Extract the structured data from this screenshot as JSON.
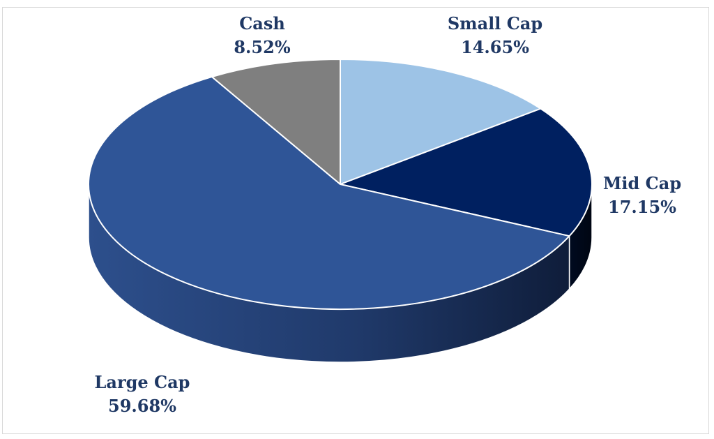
{
  "chart_data": {
    "type": "pie",
    "title": "",
    "categories": [
      "Small Cap",
      "Mid Cap",
      "Large Cap",
      "Cash"
    ],
    "values": [
      14.65,
      17.15,
      59.68,
      8.52
    ],
    "value_labels": [
      "14.65%",
      "17.15%",
      "59.68%",
      "8.52%"
    ],
    "colors": [
      "#9dc3e6",
      "#002060",
      "#2f5597",
      "#7f7f7f"
    ],
    "style": "3d-pie",
    "start": "12 o'clock, clockwise",
    "legend": "none",
    "data_labels": "category name and percentage"
  }
}
